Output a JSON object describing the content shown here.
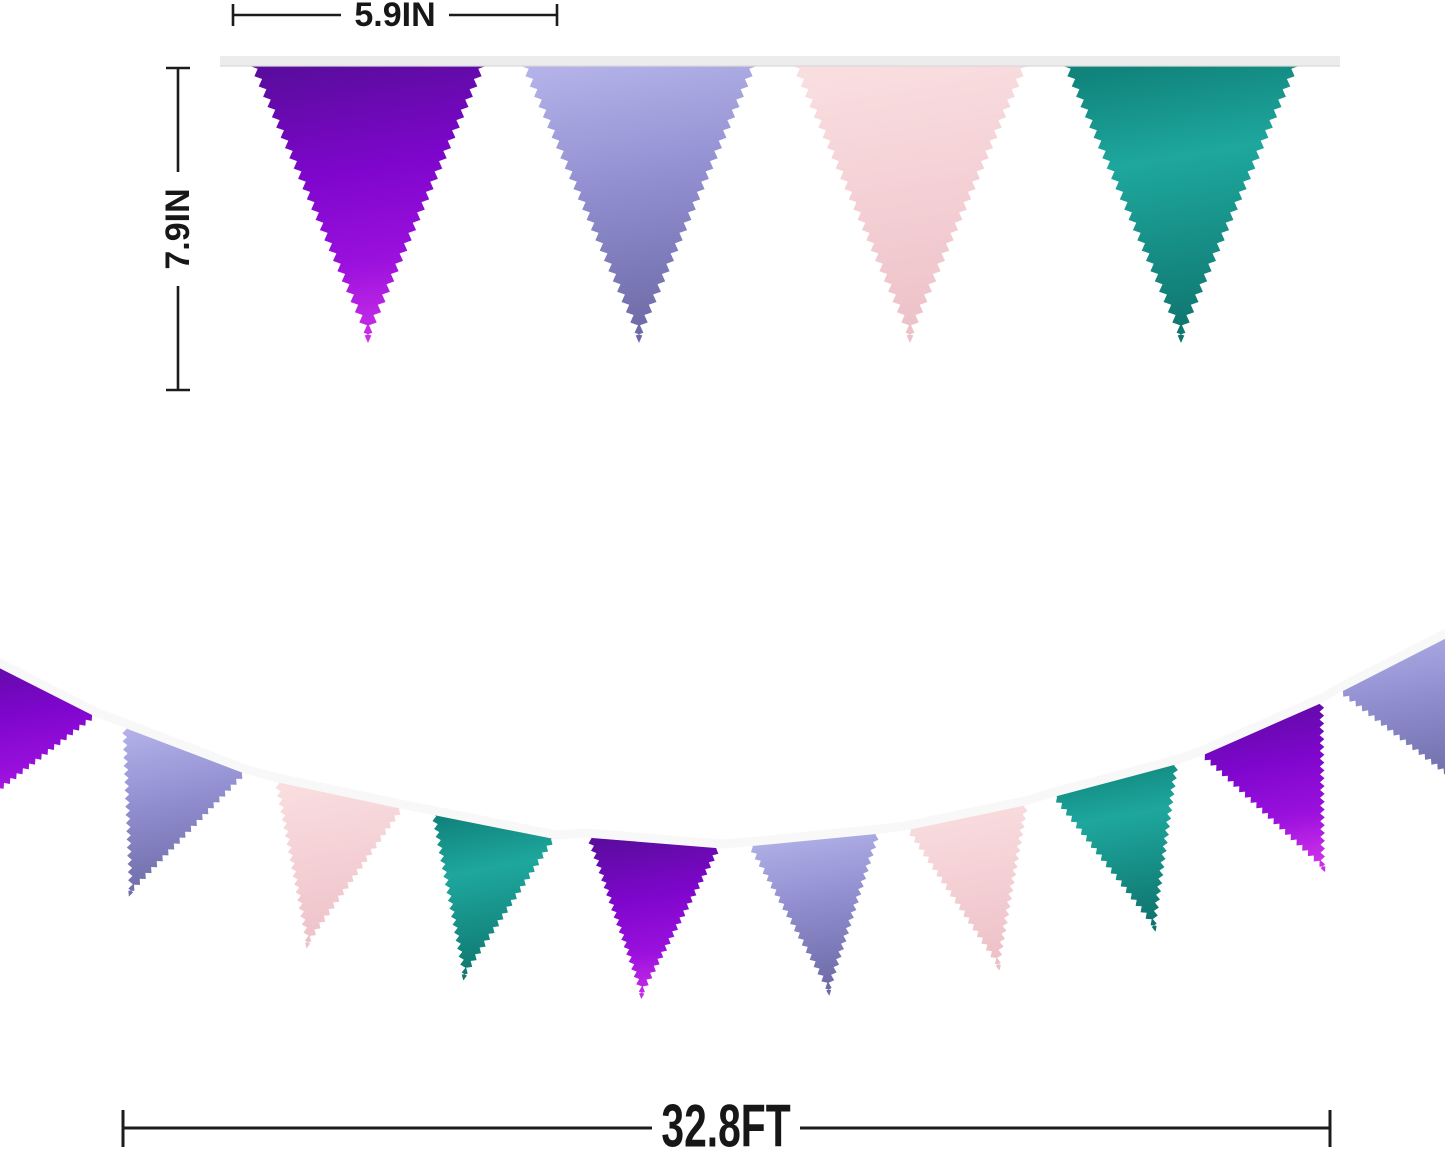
{
  "image_type": "pennant banner product dimension diagram",
  "annotations": {
    "flag_width": "5.9IN",
    "flag_height": "7.9IN",
    "banner_length": "32.8FT",
    "text_color": "#1c1c1c"
  },
  "palette": {
    "purple": {
      "name": "metallic purple",
      "stops": [
        [
          0,
          "#5a0c9e"
        ],
        [
          0.4,
          "#7f06cd"
        ],
        [
          0.72,
          "#9a10dd"
        ],
        [
          1,
          "#cb2fe8"
        ]
      ]
    },
    "lavender": {
      "name": "metallic lavender",
      "stops": [
        [
          0,
          "#b3b1e8"
        ],
        [
          0.45,
          "#908ecf"
        ],
        [
          1,
          "#6c69a5"
        ]
      ]
    },
    "pink": {
      "name": "metallic pink",
      "stops": [
        [
          0,
          "#f9dee0"
        ],
        [
          0.55,
          "#f3ced3"
        ],
        [
          1,
          "#ecc1c7"
        ]
      ]
    },
    "teal": {
      "name": "metallic teal",
      "stops": [
        [
          0,
          "#10837b"
        ],
        [
          0.35,
          "#1ea79d"
        ],
        [
          1,
          "#0e746d"
        ]
      ]
    }
  },
  "top_banner": {
    "string_color": "#ececec",
    "string_edge_color": "#d9d9d9",
    "flags": [
      "purple",
      "lavender",
      "pink",
      "teal"
    ]
  },
  "bottom_banner": {
    "ribbon_color": "#f8f8f8",
    "flags": [
      "purple",
      "lavender",
      "pink",
      "teal",
      "purple",
      "lavender",
      "pink",
      "teal",
      "purple",
      "lavender"
    ]
  }
}
